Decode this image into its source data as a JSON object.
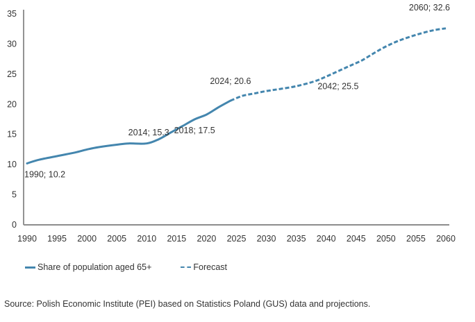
{
  "chart_data": {
    "type": "line",
    "title": "",
    "xlabel": "",
    "ylabel": "",
    "xlim": [
      1990,
      2060
    ],
    "ylim": [
      0,
      35
    ],
    "x_ticks": [
      "1990",
      "1995",
      "2000",
      "2005",
      "2010",
      "2015",
      "2020",
      "2025",
      "2030",
      "2035",
      "2040",
      "2045",
      "2050",
      "2055",
      "2060"
    ],
    "y_ticks": [
      "0",
      "5",
      "10",
      "15",
      "20",
      "25",
      "30",
      "35"
    ],
    "grid": false,
    "legend_position": "bottom-left",
    "series": [
      {
        "name": "Share of population aged 65+",
        "style": "solid",
        "color": "#4486ae",
        "points": [
          [
            1990,
            10.2
          ],
          [
            1992,
            10.8
          ],
          [
            1995,
            11.4
          ],
          [
            1998,
            12.0
          ],
          [
            2000,
            12.5
          ],
          [
            2002,
            12.9
          ],
          [
            2005,
            13.3
          ],
          [
            2007,
            13.5
          ],
          [
            2010,
            13.5
          ],
          [
            2012,
            14.2
          ],
          [
            2014,
            15.3
          ],
          [
            2016,
            16.4
          ],
          [
            2018,
            17.5
          ],
          [
            2020,
            18.3
          ],
          [
            2022,
            19.5
          ],
          [
            2024,
            20.6
          ]
        ]
      },
      {
        "name": "Forecast",
        "style": "dashed",
        "color": "#4486ae",
        "points": [
          [
            2024,
            20.6
          ],
          [
            2026,
            21.4
          ],
          [
            2028,
            21.8
          ],
          [
            2030,
            22.2
          ],
          [
            2032,
            22.5
          ],
          [
            2035,
            23.0
          ],
          [
            2038,
            23.8
          ],
          [
            2040,
            24.6
          ],
          [
            2042,
            25.5
          ],
          [
            2044,
            26.4
          ],
          [
            2046,
            27.3
          ],
          [
            2048,
            28.5
          ],
          [
            2050,
            29.6
          ],
          [
            2052,
            30.5
          ],
          [
            2054,
            31.2
          ],
          [
            2056,
            31.8
          ],
          [
            2058,
            32.3
          ],
          [
            2060,
            32.6
          ]
        ]
      }
    ],
    "annotations": [
      {
        "text": "1990; 10.2",
        "x": 1990,
        "y": 10.2,
        "pos": "below"
      },
      {
        "text": "2014; 15.3",
        "x": 2014,
        "y": 15.3,
        "pos": "left"
      },
      {
        "text": "2018; 17.5",
        "x": 2018,
        "y": 17.5,
        "pos": "below"
      },
      {
        "text": "2024; 20.6",
        "x": 2024,
        "y": 20.6,
        "pos": "above"
      },
      {
        "text": "2042; 25.5",
        "x": 2042,
        "y": 25.5,
        "pos": "below"
      },
      {
        "text": "2060; 32.6",
        "x": 2060,
        "y": 32.6,
        "pos": "above"
      }
    ]
  },
  "legend": {
    "items": [
      {
        "label": "Share of population aged 65+"
      },
      {
        "label": "Forecast"
      }
    ]
  },
  "source": "Source: Polish Economic Institute (PEI) based on Statistics Poland (GUS) data and projections."
}
